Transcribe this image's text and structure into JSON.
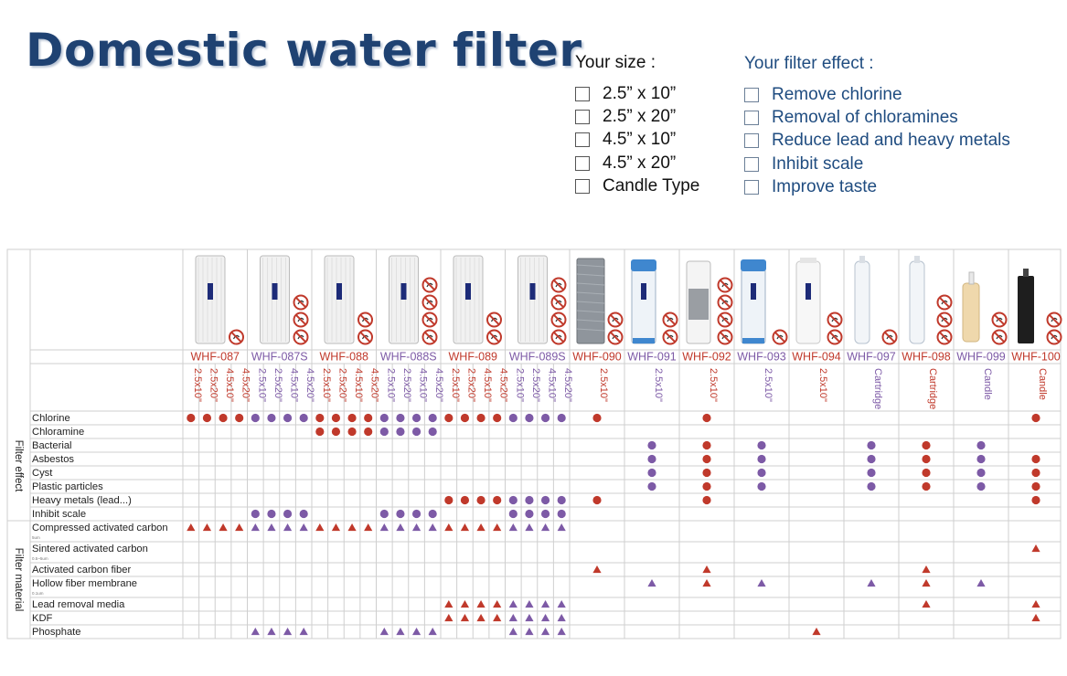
{
  "page_title": "Domestic water filter",
  "size_options": {
    "heading": "Your size :",
    "items": [
      {
        "label": "2.5” x  10”"
      },
      {
        "label": "2.5” x  20”"
      },
      {
        "label": "4.5” x  10”"
      },
      {
        "label": "4.5” x  20”"
      },
      {
        "label": "Candle Type"
      }
    ]
  },
  "effect_options": {
    "heading": "Your filter effect :",
    "items": [
      {
        "label": "Remove chlorine"
      },
      {
        "label": "Removal of chloramines"
      },
      {
        "label": "Reduce lead and heavy metals"
      },
      {
        "label": "Inhibit scale"
      },
      {
        "label": "Improve taste"
      }
    ]
  },
  "colors": {
    "red": "#c0392b",
    "purple": "#7d5aa6",
    "title": "#1f4272",
    "effect_text": "#1f4c80",
    "grid": "#cfcfcf"
  },
  "table": {
    "products": [
      {
        "model": "WHF-087",
        "color": "red",
        "sizes": [
          "2.5x10\"",
          "2.5x20\"",
          "4.5x10\"",
          "4.5x20\""
        ],
        "image": "white-carbon-cartridge",
        "badges": 1,
        "logo": true
      },
      {
        "model": "WHF-087S",
        "color": "purple",
        "sizes": [
          "2.5x10\"",
          "2.5x20\"",
          "4.5x10\"",
          "4.5x20\""
        ],
        "image": "white-carbon-cartridge",
        "badges": 3,
        "logo": true
      },
      {
        "model": "WHF-088",
        "color": "red",
        "sizes": [
          "2.5x10\"",
          "2.5x20\"",
          "4.5x10\"",
          "4.5x20\""
        ],
        "image": "white-carbon-cartridge",
        "badges": 2,
        "logo": true
      },
      {
        "model": "WHF-088S",
        "color": "purple",
        "sizes": [
          "2.5x10\"",
          "2.5x20\"",
          "4.5x10\"",
          "4.5x20\""
        ],
        "image": "white-carbon-cartridge",
        "badges": 4,
        "logo": true
      },
      {
        "model": "WHF-089",
        "color": "red",
        "sizes": [
          "2.5x10\"",
          "2.5x20\"",
          "4.5x10\"",
          "4.5x20\""
        ],
        "image": "white-carbon-cartridge",
        "badges": 2,
        "logo": true
      },
      {
        "model": "WHF-089S",
        "color": "purple",
        "sizes": [
          "2.5x10\"",
          "2.5x20\"",
          "4.5x10\"",
          "4.5x20\""
        ],
        "image": "white-carbon-cartridge",
        "badges": 4,
        "logo": true
      },
      {
        "model": "WHF-090",
        "color": "red",
        "sizes": [
          "2.5x10\""
        ],
        "image": "grey-carbon-fiber-cartridge",
        "badges": 2,
        "logo": false
      },
      {
        "model": "WHF-091",
        "color": "purple",
        "sizes": [
          "2.5x10\""
        ],
        "image": "blue-cap-clear-housing",
        "badges": 2,
        "logo": true
      },
      {
        "model": "WHF-092",
        "color": "red",
        "sizes": [
          "2.5x10\""
        ],
        "image": "clear-housing-mixed-media",
        "badges": 4,
        "logo": false
      },
      {
        "model": "WHF-093",
        "color": "purple",
        "sizes": [
          "2.5x10\""
        ],
        "image": "blue-cap-clear-housing",
        "badges": 1,
        "logo": true
      },
      {
        "model": "WHF-094",
        "color": "red",
        "sizes": [
          "2.5x10\""
        ],
        "image": "white-housing",
        "badges": 2,
        "logo": true
      },
      {
        "model": "WHF-097",
        "color": "purple",
        "sizes": [
          "Cartridge"
        ],
        "image": "inline-cartridge",
        "badges": 1,
        "logo": false
      },
      {
        "model": "WHF-098",
        "color": "red",
        "sizes": [
          "Cartridge"
        ],
        "image": "inline-cartridge",
        "badges": 3,
        "logo": false
      },
      {
        "model": "WHF-099",
        "color": "purple",
        "sizes": [
          "Candle"
        ],
        "image": "ceramic-candle",
        "badges": 2,
        "logo": false
      },
      {
        "model": "WHF-100",
        "color": "red",
        "sizes": [
          "Candle"
        ],
        "image": "black-candle",
        "badges": 2,
        "logo": false
      }
    ],
    "groups": [
      {
        "label": "Filter effect",
        "rows": [
          0,
          1,
          2,
          3,
          4,
          5,
          6,
          7
        ]
      },
      {
        "label": "Filter material",
        "rows": [
          8,
          9,
          10,
          11,
          12,
          13,
          14
        ]
      }
    ],
    "rows": [
      {
        "label": "Chlorine",
        "sub": "",
        "mark": "dot",
        "on": [
          0,
          1,
          2,
          3,
          4,
          5,
          6,
          8,
          14
        ]
      },
      {
        "label": "Chloramine",
        "sub": "",
        "mark": "dot",
        "on": [
          2,
          3
        ]
      },
      {
        "label": "Bacterial",
        "sub": "",
        "mark": "dot",
        "on": [
          7,
          8,
          9,
          11,
          12,
          13
        ]
      },
      {
        "label": "Asbestos",
        "sub": "",
        "mark": "dot",
        "on": [
          7,
          8,
          9,
          11,
          12,
          13,
          14
        ]
      },
      {
        "label": "Cyst",
        "sub": "",
        "mark": "dot",
        "on": [
          7,
          8,
          9,
          11,
          12,
          13,
          14
        ]
      },
      {
        "label": "Plastic particles",
        "sub": "",
        "mark": "dot",
        "on": [
          7,
          8,
          9,
          11,
          12,
          13,
          14
        ]
      },
      {
        "label": "Heavy metals (lead...)",
        "sub": "",
        "mark": "dot",
        "on": [
          4,
          5,
          6,
          8,
          14
        ]
      },
      {
        "label": "Inhibit scale",
        "sub": "",
        "mark": "dot",
        "on": [
          1,
          3,
          5
        ]
      },
      {
        "label": "Compressed activated carbon",
        "sub": "5um",
        "mark": "tri",
        "on": [
          0,
          1,
          2,
          3,
          4,
          5
        ]
      },
      {
        "label": "Sintered activated carbon",
        "sub": "0.5~5um",
        "mark": "tri",
        "on": [
          14
        ]
      },
      {
        "label": "Activated carbon fiber",
        "sub": "",
        "mark": "tri",
        "on": [
          6,
          8,
          12
        ]
      },
      {
        "label": "Hollow fiber membrane",
        "sub": "0.1um",
        "mark": "tri",
        "on": [
          7,
          8,
          9,
          11,
          12,
          13
        ]
      },
      {
        "label": "Lead removal media",
        "sub": "",
        "mark": "tri",
        "on": [
          4,
          5,
          12,
          14
        ]
      },
      {
        "label": "KDF",
        "sub": "",
        "mark": "tri",
        "on": [
          4,
          5,
          14
        ]
      },
      {
        "label": "Phosphate",
        "sub": "",
        "mark": "tri",
        "on": [
          1,
          3,
          5,
          10
        ]
      }
    ]
  }
}
